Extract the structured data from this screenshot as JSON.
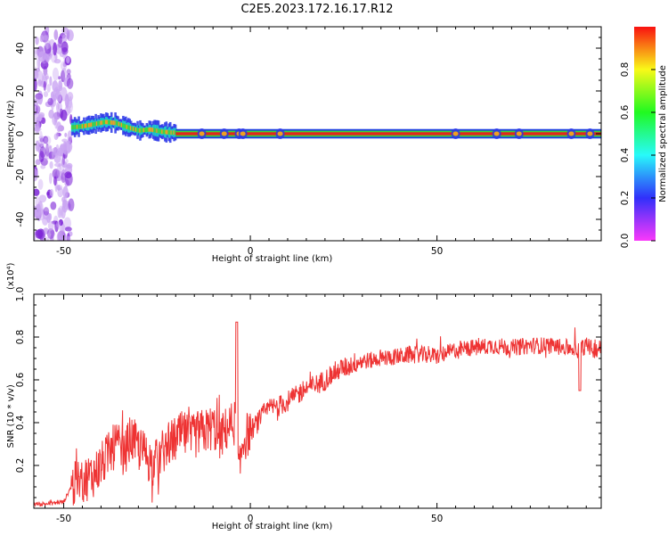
{
  "title": "C2E5.2023.172.16.17.R12",
  "chart_data": [
    {
      "type": "heatmap",
      "title": "",
      "xlabel": "Height of straight line (km)",
      "ylabel": "Frequency (Hz)",
      "xlim": [
        -58,
        94
      ],
      "ylim": [
        -50,
        50
      ],
      "x_ticks": [
        -50,
        0,
        50
      ],
      "y_ticks": [
        -40,
        -20,
        0,
        20,
        40
      ],
      "colorbar": {
        "label": "Normalized spectral amplitude",
        "range": [
          0.0,
          1.0
        ],
        "ticks": [
          0.0,
          0.2,
          0.4,
          0.6,
          0.8
        ],
        "tick_labels": [
          "0.0",
          "0.2",
          "0.4",
          "0.6",
          "0.8"
        ]
      },
      "features": [
        {
          "x_range": [
            -58,
            -48
          ],
          "frequency_range": [
            -50,
            50
          ],
          "amplitude": 0.15,
          "description": "broadband noise"
        },
        {
          "x_range": [
            -48,
            -20
          ],
          "frequency_range": [
            -3,
            8
          ],
          "amplitude": 0.6,
          "description": "tone drifting from about 3 Hz up to 6 Hz and back to 0 Hz"
        },
        {
          "x_range": [
            -20,
            94
          ],
          "frequency_range": [
            -1,
            1
          ],
          "amplitude": 0.85,
          "description": "steady tone near 0 Hz"
        }
      ],
      "tone_track": {
        "x": [
          -48,
          -45,
          -42,
          -39,
          -36,
          -33,
          -30,
          -27,
          -24,
          -21,
          -18,
          -15,
          -10,
          -5,
          0,
          20,
          50,
          94
        ],
        "frequency": [
          3,
          3.5,
          4.5,
          5.5,
          5,
          3,
          1.5,
          2,
          1,
          0.5,
          1,
          0.5,
          0.3,
          -0.5,
          0,
          0,
          0,
          0
        ]
      }
    },
    {
      "type": "line",
      "title": "",
      "xlabel": "Height of straight line (km)",
      "ylabel": "SNR (10 * v/v)",
      "y_scale_label": "(x10⁴)",
      "xlim": [
        -58,
        94
      ],
      "ylim": [
        0,
        1.0
      ],
      "x_ticks": [
        -50,
        0,
        50
      ],
      "y_ticks": [
        0.2,
        0.4,
        0.6,
        0.8,
        1.0
      ],
      "y_tick_labels": [
        "0.2",
        "0.4",
        "0.6",
        "0.8",
        "1.0"
      ],
      "series": [
        {
          "color": "#ee3333",
          "x": [
            -58,
            -55,
            -50,
            -48,
            -46,
            -44,
            -42,
            -40,
            -38,
            -36,
            -34,
            -32,
            -30,
            -28,
            -26,
            -24,
            -22,
            -20,
            -18,
            -16,
            -14,
            -12,
            -10,
            -8,
            -6,
            -4,
            -3,
            -2,
            0,
            2,
            4,
            6,
            8,
            10,
            12,
            14,
            16,
            18,
            20,
            22,
            24,
            26,
            28,
            30,
            32,
            35,
            40,
            45,
            50,
            55,
            60,
            65,
            70,
            75,
            80,
            85,
            88,
            90,
            92,
            94
          ],
          "y": [
            0.02,
            0.02,
            0.03,
            0.1,
            0.12,
            0.14,
            0.16,
            0.2,
            0.25,
            0.3,
            0.25,
            0.33,
            0.28,
            0.25,
            0.2,
            0.25,
            0.3,
            0.32,
            0.35,
            0.32,
            0.35,
            0.36,
            0.38,
            0.33,
            0.38,
            0.4,
            0.15,
            0.32,
            0.36,
            0.4,
            0.45,
            0.47,
            0.48,
            0.5,
            0.52,
            0.55,
            0.57,
            0.58,
            0.6,
            0.63,
            0.65,
            0.66,
            0.68,
            0.69,
            0.69,
            0.7,
            0.71,
            0.72,
            0.71,
            0.74,
            0.75,
            0.76,
            0.75,
            0.76,
            0.76,
            0.75,
            0.74,
            0.76,
            0.74,
            0.75
          ]
        }
      ]
    }
  ]
}
